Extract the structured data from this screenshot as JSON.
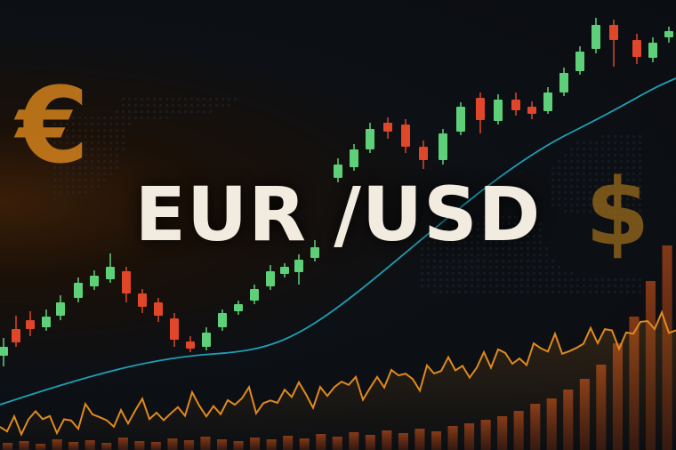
{
  "title": "EUR /USD",
  "symbols": {
    "euro": "€",
    "dollar": "$"
  },
  "colors": {
    "background": "#0b0e12",
    "bull_candle": "#5fd07a",
    "bear_candle": "#e0462a",
    "moving_average": "#1f9fb4",
    "price_line": "#e08a1e",
    "volume_bars": "#8a3a16",
    "title": "#f2ece0",
    "euro_symbol": "#d9861c",
    "dollar_symbol": "#9a6a1a"
  }
}
